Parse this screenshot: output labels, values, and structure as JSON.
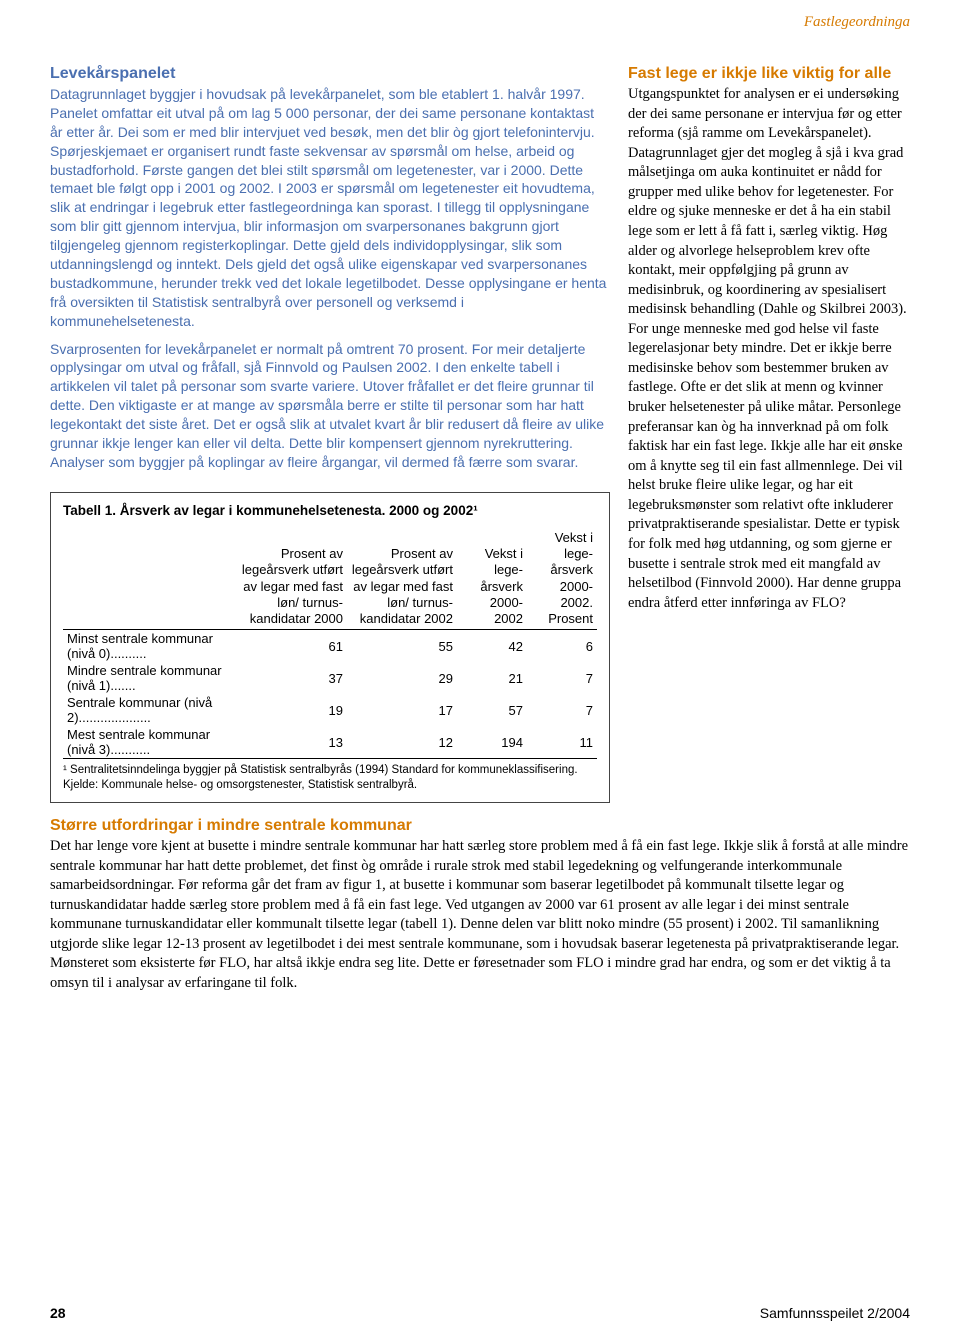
{
  "header_label": "Fastlegeordninga",
  "box": {
    "title": "Levekårspanelet",
    "p1": "Datagrunnlaget byggjer i hovudsak på levekårpanelet, som ble etablert 1. halvår 1997. Panelet omfattar eit utval på om lag 5 000 personar, der dei same personane kontaktast år etter år. Dei som er med blir intervjuet ved besøk, men det blir òg gjort telefonintervju. Spørjeskjemaet er organisert rundt faste sekvensar av spørsmål om helse, arbeid og bustadforhold. Første gangen det blei stilt spørsmål om legetenester, var i 2000. Dette temaet ble følgt opp i 2001 og 2002. I 2003 er spørsmål om legetenester eit hovudtema, slik at endringar i legebruk etter fastlegeordninga kan sporast. I tillegg til opplysningane som blir gitt gjennom intervjua, blir informasjon om svarpersonanes bakgrunn gjort tilgjengeleg gjennom registerkoplingar. Dette gjeld dels individopplysingar, slik som utdanningslengd og inntekt. Dels gjeld det også ulike eigenskapar ved svarpersonanes bustadkommune, herunder trekk ved det lokale legetilbodet. Desse opplysingane er henta frå oversikten til Statistisk sentralbyrå over personell og verksemd i kommunehelsetenesta.",
    "p2": "Svarprosenten for levekårpanelet er normalt på omtrent 70 prosent. For meir detaljerte opplysingar om utval og fråfall, sjå Finnvold og Paulsen 2002. I den enkelte tabell i artikkelen vil talet på personar som svarte variere. Utover fråfallet er det fleire grunnar til dette. Den viktigaste er at mange av spørsmåla berre er stilte til personar som har hatt legekontakt det siste året. Det er også slik at utvalet kvart år blir redusert då fleire av ulike grunnar ikkje lenger kan eller vil delta. Dette blir kompensert gjennom nyrekruttering. Analyser som byggjer på koplingar av fleire årgangar, vil dermed få færre som svarar."
  },
  "table": {
    "title": "Tabell 1. Årsverk av legar i kommunehelsetenesta. 2000 og 2002¹",
    "columns": [
      "",
      "Prosent av legeårsverk utført av legar med fast løn/ turnus-kandidatar 2000",
      "Prosent av legeårsverk utført av legar med fast løn/ turnus-kandidatar 2002",
      "Vekst i lege-årsverk 2000-2002",
      "Vekst i lege-årsverk 2000-2002. Prosent"
    ],
    "row_labels": [
      "Minst sentrale kommunar (nivå 0)..........",
      "Mindre sentrale kommunar (nivå 1).......",
      "Sentrale kommunar (nivå 2)....................",
      "Mest sentrale kommunar (nivå 3)..........."
    ],
    "rows": [
      [
        "61",
        "55",
        "42",
        "6"
      ],
      [
        "37",
        "29",
        "21",
        "7"
      ],
      [
        "19",
        "17",
        "57",
        "7"
      ],
      [
        "13",
        "12",
        "194",
        "11"
      ]
    ],
    "note": "¹ Sentralitetsinndelinga byggjer på Statistisk sentralbyrås (1994) Standard for kommuneklassifisering. Kjelde: Kommunale helse- og omsorgstenester, Statistisk sentralbyrå."
  },
  "right": {
    "title": "Fast lege er ikkje like viktig for alle",
    "body": "Utgangspunktet for analysen er ei undersøking der dei same personane er intervjua før og etter reforma (sjå ramme om Levekårspanelet). Datagrunnlaget gjer det mogleg å sjå i kva grad målsetjinga om auka kontinuitet er nådd for grupper med ulike behov for legetenester. For eldre og sjuke menneske er det å ha ein stabil lege som er lett å få fatt i, særleg viktig. Høg alder og alvorlege helseproblem krev ofte kontakt, meir oppfølgjing på grunn av medisinbruk, og koordinering av spesialisert medisinsk behandling (Dahle og Skilbrei 2003). For unge menneske med god helse vil faste legerelasjonar bety mindre. Det er ikkje berre medisinske behov som bestemmer bruken av fastlege. Ofte er det slik at menn og kvinner bruker helsetenester på ulike måtar. Personlege preferansar kan òg ha innverknad på om folk faktisk har ein fast lege. Ikkje alle har eit ønske om å knytte seg til ein fast allmennlege. Dei vil helst bruke fleire ulike legar, og har eit legebruksmønster som relativt ofte inkluderer privatpraktiserande spesialistar. Dette er typisk for folk med høg utdanning, og som gjerne er busette i sentrale strok med eit mangfald av helsetilbod (Finnvold 2000). Har denne gruppa endra åtferd etter innføringa av FLO?"
  },
  "bottom": {
    "title": "Større utfordringar i mindre sentrale kommunar",
    "body": "Det har lenge vore kjent at busette i mindre sentrale kommunar har hatt særleg store problem med å få ein fast lege. Ikkje slik å forstå at alle mindre sentrale kommunar har hatt dette problemet, det finst òg område i rurale strok med stabil legedekning og velfungerande interkommunale samarbeidsordningar. Før reforma går det fram av figur 1, at busette i kommunar som baserar legetilbodet på kommunalt tilsette legar og turnuskandidatar hadde særleg store problem med å få ein fast lege. Ved utgangen av 2000 var 61 prosent av alle legar i dei minst sentrale kommunane turnuskandidatar eller kommunalt tilsette legar (tabell 1). Denne delen var blitt noko mindre (55 prosent) i 2002. Til samanlikning utgjorde slike legar 12-13 prosent av legetilbodet i dei mest sentrale kommunane, som i hovudsak baserar legetenesta på privatpraktiserande legar. Mønsteret som eksisterte før FLO, har altså ikkje endra seg lite. Dette er føresetnader som FLO i mindre grad har endra, og som er det viktig å ta omsyn til i analysar av erfaringane til folk."
  },
  "footer": {
    "page": "28",
    "source": "Samfunnsspeilet 2/2004"
  }
}
